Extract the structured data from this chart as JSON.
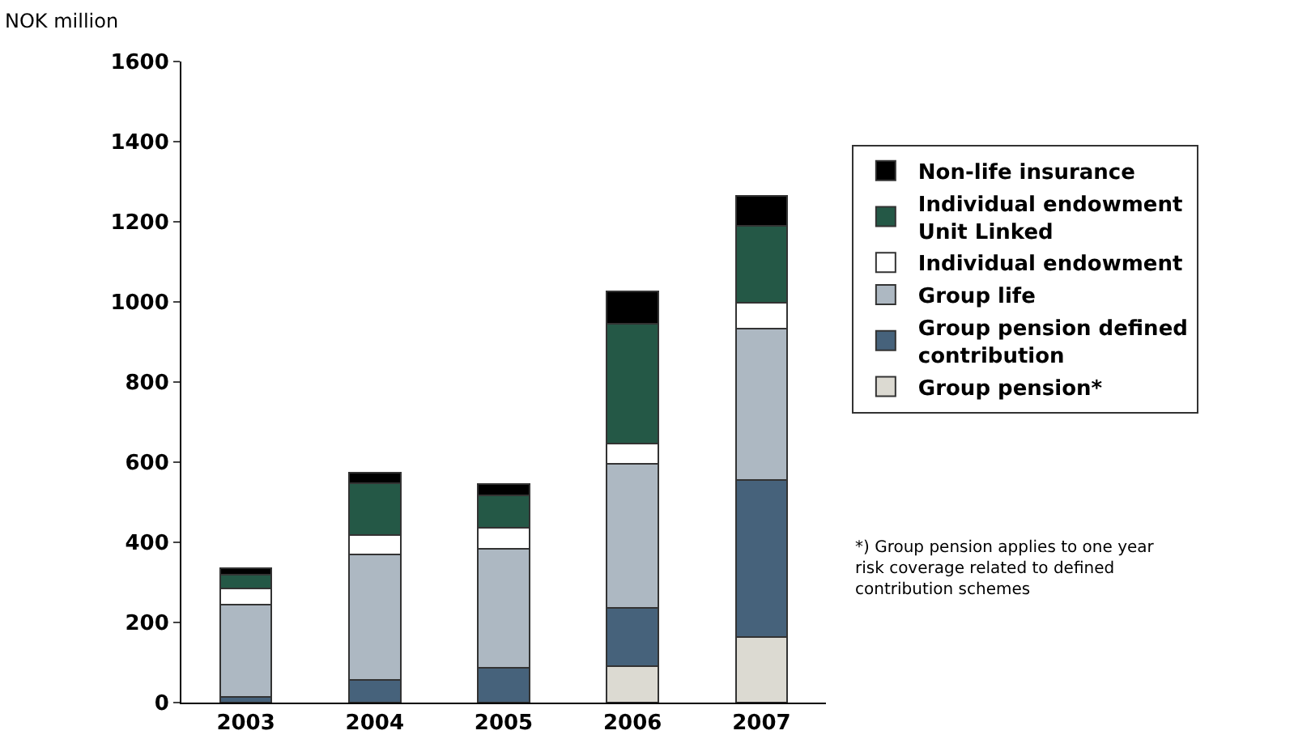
{
  "chart_data": {
    "type": "bar",
    "stacked": true,
    "ylabel": "NOK million",
    "categories": [
      "2003",
      "2004",
      "2005",
      "2006",
      "2007"
    ],
    "series": [
      {
        "name": "Group pension*",
        "color": "#dcdad2",
        "values": [
          0,
          0,
          0,
          91,
          164
        ]
      },
      {
        "name": "Group pension defined contribution",
        "color": "#46627b",
        "values": [
          15,
          56,
          87,
          145,
          391
        ]
      },
      {
        "name": "Group life",
        "color": "#adb8c2",
        "values": [
          229,
          314,
          296,
          359,
          378
        ]
      },
      {
        "name": "Individual endowment",
        "color": "#ffffff",
        "values": [
          40,
          48,
          54,
          52,
          65
        ]
      },
      {
        "name": "Individual endowment Unit Linked",
        "color": "#245846",
        "values": [
          35,
          130,
          80,
          299,
          191
        ]
      },
      {
        "name": "Non-life insurance",
        "color": "#000000",
        "values": [
          16,
          26,
          29,
          80,
          75
        ]
      }
    ],
    "ylim": [
      0,
      1600
    ],
    "yticks": [
      0,
      200,
      400,
      600,
      800,
      1000,
      1200,
      1400,
      1600
    ],
    "legend": "right",
    "annotations": [
      "*) Group pension applies to one year risk coverage related to defined contribution schemes"
    ]
  }
}
